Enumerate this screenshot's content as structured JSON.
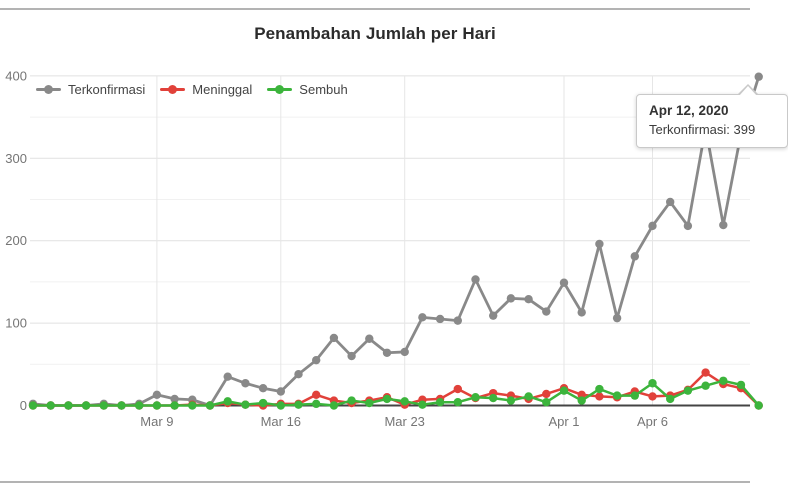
{
  "legend": [
    {
      "label": "Terkonfirmasi",
      "color": "#898989"
    },
    {
      "label": "Meninggal",
      "color": "#e1413a"
    },
    {
      "label": "Sembuh",
      "color": "#3cb43c"
    }
  ],
  "tooltip": {
    "date": "Apr 12, 2020",
    "text": "Terkonfirmasi: 399"
  },
  "chart_data": {
    "type": "line",
    "title": "Penambahan Jumlah per Hari",
    "xlabel": "",
    "ylabel": "",
    "ylim": [
      0,
      400
    ],
    "y_ticks": [
      0,
      100,
      200,
      300,
      400
    ],
    "y_minor_ticks": [
      50,
      150,
      250,
      350
    ],
    "grid": true,
    "legend_position": "top-left",
    "x_tick_labels": [
      {
        "label": "Mar 9",
        "day_index": 7
      },
      {
        "label": "Mar 16",
        "day_index": 14
      },
      {
        "label": "Mar 23",
        "day_index": 21
      },
      {
        "label": "Apr 1",
        "day_index": 30
      },
      {
        "label": "Apr 6",
        "day_index": 35
      }
    ],
    "dates": [
      "Mar 2",
      "Mar 3",
      "Mar 4",
      "Mar 5",
      "Mar 6",
      "Mar 7",
      "Mar 8",
      "Mar 9",
      "Mar 10",
      "Mar 11",
      "Mar 12",
      "Mar 13",
      "Mar 14",
      "Mar 15",
      "Mar 16",
      "Mar 17",
      "Mar 18",
      "Mar 19",
      "Mar 20",
      "Mar 21",
      "Mar 22",
      "Mar 23",
      "Mar 24",
      "Mar 25",
      "Mar 26",
      "Mar 27",
      "Mar 28",
      "Mar 29",
      "Mar 30",
      "Mar 31",
      "Apr 1",
      "Apr 2",
      "Apr 3",
      "Apr 4",
      "Apr 5",
      "Apr 6",
      "Apr 7",
      "Apr 8",
      "Apr 9",
      "Apr 10",
      "Apr 11",
      "Apr 12"
    ],
    "series": [
      {
        "name": "Terkonfirmasi",
        "color": "#898989",
        "values": [
          2,
          0,
          0,
          0,
          2,
          0,
          2,
          13,
          8,
          7,
          0,
          35,
          27,
          21,
          17,
          38,
          55,
          82,
          60,
          81,
          64,
          65,
          107,
          105,
          103,
          153,
          109,
          130,
          129,
          114,
          149,
          113,
          196,
          106,
          181,
          218,
          247,
          218,
          337,
          219,
          330,
          399
        ]
      },
      {
        "name": "Meninggal",
        "color": "#e1413a",
        "values": [
          0,
          0,
          0,
          0,
          0,
          0,
          0,
          0,
          0,
          1,
          0,
          3,
          1,
          0,
          2,
          2,
          13,
          6,
          3,
          6,
          10,
          1,
          7,
          8,
          20,
          9,
          15,
          12,
          8,
          14,
          21,
          13,
          11,
          10,
          17,
          11,
          12,
          19,
          40,
          26,
          21,
          0
        ]
      },
      {
        "name": "Sembuh",
        "color": "#3cb43c",
        "values": [
          0,
          0,
          0,
          0,
          0,
          0,
          0,
          0,
          0,
          0,
          0,
          5,
          1,
          3,
          0,
          1,
          2,
          0,
          6,
          3,
          8,
          5,
          1,
          4,
          4,
          10,
          9,
          6,
          11,
          4,
          18,
          6,
          20,
          12,
          12,
          27,
          8,
          18,
          24,
          30,
          25,
          0
        ]
      }
    ]
  }
}
